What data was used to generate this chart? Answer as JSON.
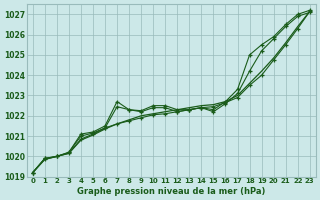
{
  "title": "Graphe pression niveau de la mer (hPa)",
  "xlabel_ticks": [
    0,
    1,
    2,
    3,
    4,
    5,
    6,
    7,
    8,
    9,
    10,
    11,
    12,
    13,
    14,
    15,
    16,
    17,
    18,
    19,
    20,
    21,
    22,
    23
  ],
  "ylim": [
    1019,
    1027.5
  ],
  "yticks": [
    1019,
    1020,
    1021,
    1022,
    1023,
    1024,
    1025,
    1026,
    1027
  ],
  "bg_color": "#cce8e8",
  "grid_color": "#99bbbb",
  "line_color": "#1a5c1a",
  "line1_marked": [
    1019.2,
    1019.9,
    1020.0,
    1020.2,
    1021.1,
    1021.2,
    1021.5,
    1022.7,
    1022.3,
    1022.25,
    1022.5,
    1022.5,
    1022.3,
    1022.3,
    1022.4,
    1022.3,
    1022.7,
    1023.3,
    1025.0,
    1025.5,
    1025.9,
    1026.5,
    1027.0,
    1027.2
  ],
  "line2_marked": [
    1019.2,
    1019.9,
    1020.0,
    1020.2,
    1021.0,
    1021.15,
    1021.4,
    1022.45,
    1022.3,
    1022.2,
    1022.4,
    1022.4,
    1022.2,
    1022.3,
    1022.4,
    1022.2,
    1022.6,
    1023.1,
    1024.2,
    1025.2,
    1025.8,
    1026.4,
    1026.9,
    1027.1
  ],
  "line3_smooth": [
    1019.2,
    1019.85,
    1020.0,
    1020.15,
    1020.8,
    1021.05,
    1021.35,
    1021.6,
    1021.8,
    1022.0,
    1022.1,
    1022.2,
    1022.3,
    1022.4,
    1022.5,
    1022.55,
    1022.7,
    1023.0,
    1023.6,
    1024.2,
    1024.85,
    1025.6,
    1026.4,
    1027.15
  ],
  "line4_marked": [
    1019.2,
    1019.85,
    1020.0,
    1020.15,
    1020.85,
    1021.1,
    1021.4,
    1021.6,
    1021.75,
    1021.9,
    1022.05,
    1022.1,
    1022.2,
    1022.3,
    1022.4,
    1022.45,
    1022.65,
    1022.9,
    1023.5,
    1024.0,
    1024.75,
    1025.5,
    1026.3,
    1027.15
  ]
}
